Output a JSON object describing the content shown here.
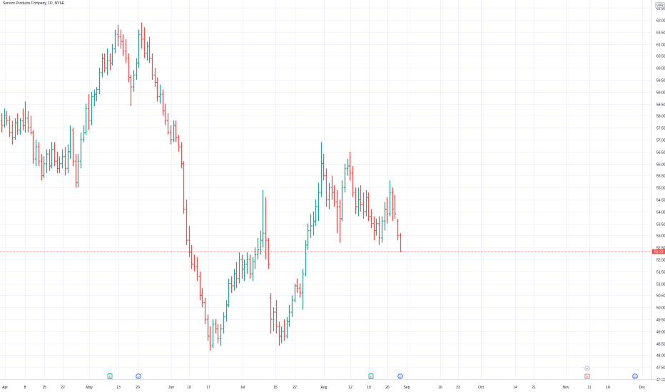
{
  "header": {
    "title": "Sonoco Products Company, 1D, NYSE",
    "currency": "USD"
  },
  "colors": {
    "up": "#26a69a",
    "down": "#ef5350",
    "grid": "#f0f3fa",
    "price_line": "#ef5350",
    "marker_blue": "#2962ff"
  },
  "chart_data": {
    "type": "ohlc-bar",
    "title": "Sonoco Products Company, 1D, NYSE",
    "ylim": [
      47.0,
      62.5
    ],
    "y_ticks": [
      "47.00",
      "47.50",
      "48.00",
      "48.50",
      "49.00",
      "49.50",
      "50.00",
      "50.50",
      "51.00",
      "51.50",
      "52.00",
      "52.50",
      "53.00",
      "53.50",
      "54.00",
      "54.50",
      "55.00",
      "55.50",
      "56.00",
      "56.50",
      "57.00",
      "57.50",
      "58.00",
      "58.50",
      "59.00",
      "59.50",
      "60.00",
      "60.50",
      "61.00",
      "61.50",
      "62.00",
      "62.50"
    ],
    "x_ticks": [
      "Apr",
      "8",
      "15",
      "22",
      "May",
      "13",
      "20",
      "Jun",
      "10",
      "17",
      "Jul",
      "15",
      "22",
      "Aug",
      "12",
      "19",
      "26",
      "Sep",
      "16",
      "23",
      "Oct",
      "14",
      "21",
      "Nov",
      "11",
      "18",
      "Dec"
    ],
    "last_price": "52.33",
    "last_price_value": 52.33,
    "series": [
      {
        "o": 57.8,
        "h": 58.1,
        "l": 57.3,
        "c": 57.6
      },
      {
        "o": 57.6,
        "h": 58.3,
        "l": 57.5,
        "c": 58.0
      },
      {
        "o": 57.9,
        "h": 58.2,
        "l": 57.6,
        "c": 57.8
      },
      {
        "o": 57.8,
        "h": 58.0,
        "l": 57.1,
        "c": 57.3
      },
      {
        "o": 57.3,
        "h": 57.8,
        "l": 56.8,
        "c": 57.1
      },
      {
        "o": 57.1,
        "h": 57.9,
        "l": 57.0,
        "c": 57.7
      },
      {
        "o": 57.7,
        "h": 58.1,
        "l": 57.2,
        "c": 57.4
      },
      {
        "o": 57.4,
        "h": 57.9,
        "l": 57.2,
        "c": 57.8
      },
      {
        "o": 57.8,
        "h": 58.3,
        "l": 57.4,
        "c": 57.6
      },
      {
        "o": 57.6,
        "h": 58.6,
        "l": 57.3,
        "c": 57.9
      },
      {
        "o": 57.9,
        "h": 58.2,
        "l": 57.3,
        "c": 57.5
      },
      {
        "o": 57.5,
        "h": 58.0,
        "l": 57.2,
        "c": 57.3
      },
      {
        "o": 57.3,
        "h": 57.4,
        "l": 56.0,
        "c": 56.2
      },
      {
        "o": 56.2,
        "h": 57.0,
        "l": 55.9,
        "c": 56.7
      },
      {
        "o": 56.7,
        "h": 56.9,
        "l": 55.9,
        "c": 56.1
      },
      {
        "o": 56.1,
        "h": 56.4,
        "l": 55.3,
        "c": 55.5
      },
      {
        "o": 55.5,
        "h": 56.3,
        "l": 55.4,
        "c": 56.0
      },
      {
        "o": 56.0,
        "h": 56.6,
        "l": 55.6,
        "c": 56.4
      },
      {
        "o": 56.4,
        "h": 56.6,
        "l": 55.7,
        "c": 55.9
      },
      {
        "o": 55.9,
        "h": 56.9,
        "l": 55.8,
        "c": 56.6
      },
      {
        "o": 56.6,
        "h": 56.9,
        "l": 55.9,
        "c": 56.1
      },
      {
        "o": 56.1,
        "h": 56.5,
        "l": 55.6,
        "c": 55.8
      },
      {
        "o": 55.8,
        "h": 56.3,
        "l": 55.6,
        "c": 56.0
      },
      {
        "o": 56.0,
        "h": 56.6,
        "l": 55.8,
        "c": 56.3
      },
      {
        "o": 56.3,
        "h": 56.7,
        "l": 55.5,
        "c": 55.8
      },
      {
        "o": 55.8,
        "h": 56.8,
        "l": 55.6,
        "c": 56.5
      },
      {
        "o": 56.5,
        "h": 57.6,
        "l": 56.2,
        "c": 57.4
      },
      {
        "o": 57.4,
        "h": 57.5,
        "l": 55.9,
        "c": 56.1
      },
      {
        "o": 56.1,
        "h": 56.4,
        "l": 55.0,
        "c": 55.2
      },
      {
        "o": 55.2,
        "h": 56.4,
        "l": 55.0,
        "c": 56.1
      },
      {
        "o": 56.1,
        "h": 57.3,
        "l": 55.8,
        "c": 57.0
      },
      {
        "o": 57.0,
        "h": 57.6,
        "l": 56.9,
        "c": 57.3
      },
      {
        "o": 57.3,
        "h": 58.5,
        "l": 57.2,
        "c": 58.3
      },
      {
        "o": 58.3,
        "h": 58.9,
        "l": 57.4,
        "c": 57.8
      },
      {
        "o": 57.8,
        "h": 59.0,
        "l": 57.6,
        "c": 58.8
      },
      {
        "o": 58.8,
        "h": 59.1,
        "l": 58.4,
        "c": 58.9
      },
      {
        "o": 58.9,
        "h": 59.2,
        "l": 58.6,
        "c": 59.1
      },
      {
        "o": 59.1,
        "h": 60.0,
        "l": 58.9,
        "c": 59.8
      },
      {
        "o": 59.8,
        "h": 60.6,
        "l": 59.6,
        "c": 60.4
      },
      {
        "o": 60.4,
        "h": 60.6,
        "l": 59.8,
        "c": 60.0
      },
      {
        "o": 60.0,
        "h": 60.8,
        "l": 59.7,
        "c": 60.3
      },
      {
        "o": 60.3,
        "h": 60.6,
        "l": 59.9,
        "c": 60.2
      },
      {
        "o": 60.2,
        "h": 61.0,
        "l": 60.1,
        "c": 60.8
      },
      {
        "o": 60.8,
        "h": 61.6,
        "l": 60.6,
        "c": 61.4
      },
      {
        "o": 61.4,
        "h": 61.8,
        "l": 60.9,
        "c": 61.3
      },
      {
        "o": 61.3,
        "h": 61.6,
        "l": 60.8,
        "c": 61.1
      },
      {
        "o": 61.1,
        "h": 61.4,
        "l": 60.5,
        "c": 60.7
      },
      {
        "o": 60.7,
        "h": 61.2,
        "l": 60.2,
        "c": 60.4
      },
      {
        "o": 60.4,
        "h": 60.6,
        "l": 59.4,
        "c": 59.6
      },
      {
        "o": 59.6,
        "h": 59.7,
        "l": 58.4,
        "c": 59.2
      },
      {
        "o": 59.2,
        "h": 59.9,
        "l": 59.0,
        "c": 59.7
      },
      {
        "o": 59.7,
        "h": 60.4,
        "l": 59.5,
        "c": 60.2
      },
      {
        "o": 60.2,
        "h": 61.6,
        "l": 60.0,
        "c": 61.4
      },
      {
        "o": 61.4,
        "h": 61.9,
        "l": 60.8,
        "c": 61.2
      },
      {
        "o": 61.2,
        "h": 61.7,
        "l": 60.4,
        "c": 60.6
      },
      {
        "o": 60.6,
        "h": 61.1,
        "l": 60.3,
        "c": 60.9
      },
      {
        "o": 60.9,
        "h": 61.3,
        "l": 60.2,
        "c": 60.4
      },
      {
        "o": 60.4,
        "h": 60.6,
        "l": 59.5,
        "c": 59.7
      },
      {
        "o": 59.7,
        "h": 60.0,
        "l": 59.2,
        "c": 59.4
      },
      {
        "o": 59.4,
        "h": 59.6,
        "l": 58.6,
        "c": 58.8
      },
      {
        "o": 58.8,
        "h": 59.3,
        "l": 58.5,
        "c": 58.9
      },
      {
        "o": 58.9,
        "h": 59.1,
        "l": 58.0,
        "c": 58.2
      },
      {
        "o": 58.2,
        "h": 58.5,
        "l": 57.6,
        "c": 57.8
      },
      {
        "o": 57.8,
        "h": 58.1,
        "l": 57.2,
        "c": 57.3
      },
      {
        "o": 57.3,
        "h": 57.6,
        "l": 56.8,
        "c": 57.0
      },
      {
        "o": 57.0,
        "h": 57.8,
        "l": 56.9,
        "c": 57.6
      },
      {
        "o": 57.6,
        "h": 57.8,
        "l": 56.9,
        "c": 57.1
      },
      {
        "o": 57.1,
        "h": 57.2,
        "l": 56.5,
        "c": 56.7
      },
      {
        "o": 56.7,
        "h": 56.9,
        "l": 55.8,
        "c": 56.0
      },
      {
        "o": 56.0,
        "h": 56.1,
        "l": 53.9,
        "c": 54.1
      },
      {
        "o": 54.1,
        "h": 54.5,
        "l": 52.6,
        "c": 52.8
      },
      {
        "o": 52.8,
        "h": 53.4,
        "l": 52.1,
        "c": 52.3
      },
      {
        "o": 52.3,
        "h": 52.6,
        "l": 51.6,
        "c": 51.8
      },
      {
        "o": 51.8,
        "h": 52.2,
        "l": 51.5,
        "c": 51.7
      },
      {
        "o": 51.7,
        "h": 52.1,
        "l": 51.1,
        "c": 51.3
      },
      {
        "o": 51.3,
        "h": 51.5,
        "l": 50.3,
        "c": 50.5
      },
      {
        "o": 50.5,
        "h": 50.8,
        "l": 50.0,
        "c": 50.2
      },
      {
        "o": 50.2,
        "h": 50.4,
        "l": 49.3,
        "c": 49.5
      },
      {
        "o": 49.5,
        "h": 49.7,
        "l": 48.6,
        "c": 48.8
      },
      {
        "o": 48.8,
        "h": 49.2,
        "l": 48.2,
        "c": 48.4
      },
      {
        "o": 48.4,
        "h": 49.5,
        "l": 48.3,
        "c": 49.3
      },
      {
        "o": 49.3,
        "h": 49.5,
        "l": 48.9,
        "c": 49.1
      },
      {
        "o": 49.1,
        "h": 49.3,
        "l": 48.5,
        "c": 48.7
      },
      {
        "o": 48.7,
        "h": 49.3,
        "l": 48.4,
        "c": 49.1
      },
      {
        "o": 49.1,
        "h": 49.8,
        "l": 48.9,
        "c": 49.6
      },
      {
        "o": 49.6,
        "h": 50.3,
        "l": 49.4,
        "c": 50.1
      },
      {
        "o": 50.1,
        "h": 51.2,
        "l": 50.0,
        "c": 51.0
      },
      {
        "o": 51.0,
        "h": 51.3,
        "l": 50.6,
        "c": 50.9
      },
      {
        "o": 50.9,
        "h": 51.6,
        "l": 50.7,
        "c": 51.4
      },
      {
        "o": 51.4,
        "h": 51.9,
        "l": 50.8,
        "c": 51.2
      },
      {
        "o": 51.2,
        "h": 52.3,
        "l": 51.0,
        "c": 52.0
      },
      {
        "o": 52.0,
        "h": 52.2,
        "l": 51.2,
        "c": 51.6
      },
      {
        "o": 51.6,
        "h": 52.0,
        "l": 51.1,
        "c": 51.8
      },
      {
        "o": 51.8,
        "h": 52.3,
        "l": 51.4,
        "c": 52.0
      },
      {
        "o": 52.0,
        "h": 52.2,
        "l": 51.2,
        "c": 51.4
      },
      {
        "o": 51.4,
        "h": 52.1,
        "l": 51.1,
        "c": 51.9
      },
      {
        "o": 51.9,
        "h": 52.5,
        "l": 51.6,
        "c": 52.2
      },
      {
        "o": 52.2,
        "h": 52.9,
        "l": 52.0,
        "c": 52.4
      },
      {
        "o": 52.4,
        "h": 53.2,
        "l": 52.2,
        "c": 52.8
      },
      {
        "o": 52.8,
        "h": 54.9,
        "l": 52.5,
        "c": 53.1
      },
      {
        "o": 53.1,
        "h": 54.6,
        "l": 52.0,
        "c": 52.8
      },
      {
        "o": 52.8,
        "h": 52.9,
        "l": 51.6,
        "c": 51.8
      },
      {
        "o": 50.4,
        "h": 50.6,
        "l": 48.9,
        "c": 49.5
      },
      {
        "o": 49.5,
        "h": 50.0,
        "l": 49.0,
        "c": 49.8
      },
      {
        "o": 49.8,
        "h": 50.3,
        "l": 48.9,
        "c": 49.2
      },
      {
        "o": 49.2,
        "h": 49.4,
        "l": 48.4,
        "c": 48.8
      },
      {
        "o": 48.8,
        "h": 49.2,
        "l": 48.5,
        "c": 49.0
      },
      {
        "o": 49.0,
        "h": 49.5,
        "l": 48.6,
        "c": 48.8
      },
      {
        "o": 48.8,
        "h": 49.6,
        "l": 48.7,
        "c": 49.4
      },
      {
        "o": 49.4,
        "h": 50.1,
        "l": 49.2,
        "c": 49.8
      },
      {
        "o": 49.8,
        "h": 50.5,
        "l": 49.6,
        "c": 50.3
      },
      {
        "o": 50.3,
        "h": 51.0,
        "l": 50.2,
        "c": 50.9
      },
      {
        "o": 50.9,
        "h": 51.2,
        "l": 50.6,
        "c": 50.8
      },
      {
        "o": 50.8,
        "h": 51.0,
        "l": 50.4,
        "c": 50.6
      },
      {
        "o": 50.6,
        "h": 51.6,
        "l": 49.9,
        "c": 51.4
      },
      {
        "o": 51.4,
        "h": 52.8,
        "l": 51.3,
        "c": 52.6
      },
      {
        "o": 52.6,
        "h": 53.5,
        "l": 52.4,
        "c": 53.2
      },
      {
        "o": 53.2,
        "h": 53.9,
        "l": 52.9,
        "c": 53.4
      },
      {
        "o": 53.4,
        "h": 54.0,
        "l": 53.0,
        "c": 53.6
      },
      {
        "o": 53.6,
        "h": 54.5,
        "l": 53.4,
        "c": 54.2
      },
      {
        "o": 54.2,
        "h": 55.2,
        "l": 53.6,
        "c": 54.8
      },
      {
        "o": 54.8,
        "h": 56.9,
        "l": 54.6,
        "c": 56.0
      },
      {
        "o": 56.0,
        "h": 56.4,
        "l": 55.3,
        "c": 55.5
      },
      {
        "o": 55.5,
        "h": 55.8,
        "l": 54.2,
        "c": 54.5
      },
      {
        "o": 54.5,
        "h": 55.2,
        "l": 54.1,
        "c": 55.0
      },
      {
        "o": 55.0,
        "h": 55.5,
        "l": 54.5,
        "c": 54.8
      },
      {
        "o": 54.8,
        "h": 55.1,
        "l": 54.2,
        "c": 54.4
      },
      {
        "o": 54.4,
        "h": 54.9,
        "l": 53.1,
        "c": 54.2
      },
      {
        "o": 54.2,
        "h": 54.5,
        "l": 52.7,
        "c": 53.7
      },
      {
        "o": 53.7,
        "h": 55.3,
        "l": 53.6,
        "c": 55.0
      },
      {
        "o": 55.0,
        "h": 56.0,
        "l": 54.8,
        "c": 55.8
      },
      {
        "o": 55.8,
        "h": 56.2,
        "l": 55.5,
        "c": 55.9
      },
      {
        "o": 55.9,
        "h": 56.5,
        "l": 55.3,
        "c": 55.6
      },
      {
        "o": 55.6,
        "h": 55.9,
        "l": 54.6,
        "c": 54.8
      },
      {
        "o": 54.8,
        "h": 55.0,
        "l": 53.9,
        "c": 54.2
      },
      {
        "o": 54.2,
        "h": 55.0,
        "l": 53.8,
        "c": 54.5
      },
      {
        "o": 54.5,
        "h": 55.1,
        "l": 54.0,
        "c": 54.3
      },
      {
        "o": 54.3,
        "h": 54.8,
        "l": 53.7,
        "c": 54.0
      },
      {
        "o": 54.0,
        "h": 54.9,
        "l": 53.8,
        "c": 54.6
      },
      {
        "o": 54.6,
        "h": 54.8,
        "l": 53.6,
        "c": 53.8
      },
      {
        "o": 53.8,
        "h": 54.1,
        "l": 53.3,
        "c": 53.5
      },
      {
        "o": 53.5,
        "h": 53.8,
        "l": 52.8,
        "c": 53.2
      },
      {
        "o": 53.2,
        "h": 53.7,
        "l": 53.0,
        "c": 53.5
      },
      {
        "o": 53.5,
        "h": 53.8,
        "l": 52.6,
        "c": 52.9
      },
      {
        "o": 52.9,
        "h": 53.8,
        "l": 52.7,
        "c": 53.6
      },
      {
        "o": 53.6,
        "h": 54.4,
        "l": 53.2,
        "c": 54.1
      },
      {
        "o": 54.1,
        "h": 54.6,
        "l": 53.5,
        "c": 53.9
      },
      {
        "o": 53.9,
        "h": 55.3,
        "l": 53.8,
        "c": 54.8
      },
      {
        "o": 54.8,
        "h": 55.0,
        "l": 53.6,
        "c": 54.1
      },
      {
        "o": 54.6,
        "h": 54.7,
        "l": 53.7,
        "c": 53.9
      },
      {
        "o": 53.6,
        "h": 53.7,
        "l": 52.8,
        "c": 53.0
      },
      {
        "o": 53.0,
        "h": 53.1,
        "l": 52.3,
        "c": 52.33
      }
    ],
    "event_markers": [
      {
        "type": "earnings",
        "label": "E",
        "slot": 41,
        "color": "#26a69a"
      },
      {
        "type": "dividend",
        "label": "D",
        "slot": 52,
        "color": "#2962ff"
      },
      {
        "type": "earnings",
        "label": "E",
        "slot": 140,
        "color": "#26a69a"
      },
      {
        "type": "dividend",
        "label": "D",
        "slot": 151,
        "color": "#2962ff"
      },
      {
        "type": "earnings_upcoming",
        "label": "E",
        "slot": 222,
        "color": "#ef5350"
      },
      {
        "type": "dividend_upcoming",
        "label": "D",
        "slot": 240,
        "color": "#2962ff"
      }
    ],
    "grid": true
  }
}
